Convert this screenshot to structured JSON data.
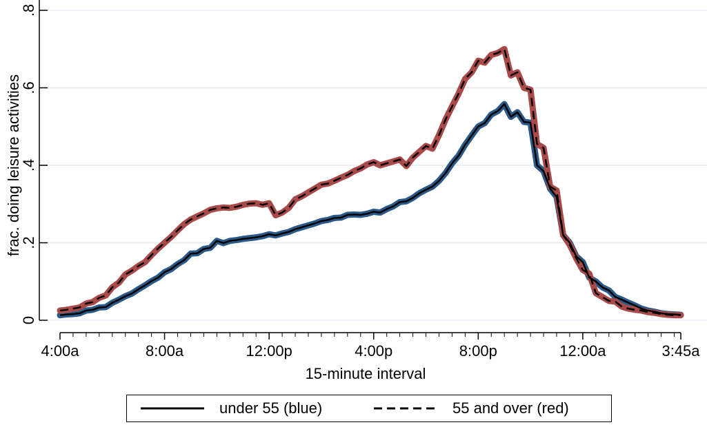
{
  "chart_data": {
    "type": "line",
    "title": "",
    "xlabel": "15-minute interval",
    "ylabel": "frac. doing leisure activities",
    "ylim": [
      0,
      0.8
    ],
    "yticks": [
      0,
      0.2,
      0.4,
      0.6,
      0.8
    ],
    "yticklabels": [
      "0",
      ".2",
      ".4",
      ".6",
      ".8"
    ],
    "xlim": [
      1,
      96
    ],
    "xticks": [
      1,
      17,
      33,
      49,
      65,
      81,
      96
    ],
    "xticklabels": [
      "4:00a",
      "8:00a",
      "12:00p",
      "4:00p",
      "8:00p",
      "12:00a",
      "3:45a"
    ],
    "grid": true,
    "legend_position": "bottom",
    "series": [
      {
        "name": "under 55 (blue)",
        "line_style": "solid",
        "band_color": "#2b5a88",
        "values": [
          0.013,
          0.015,
          0.016,
          0.018,
          0.025,
          0.027,
          0.033,
          0.034,
          0.045,
          0.053,
          0.062,
          0.069,
          0.08,
          0.09,
          0.101,
          0.11,
          0.124,
          0.132,
          0.145,
          0.155,
          0.172,
          0.173,
          0.184,
          0.187,
          0.205,
          0.199,
          0.205,
          0.207,
          0.21,
          0.212,
          0.214,
          0.217,
          0.222,
          0.219,
          0.224,
          0.228,
          0.235,
          0.24,
          0.245,
          0.25,
          0.256,
          0.259,
          0.264,
          0.265,
          0.272,
          0.273,
          0.272,
          0.275,
          0.28,
          0.278,
          0.287,
          0.294,
          0.305,
          0.307,
          0.316,
          0.328,
          0.337,
          0.345,
          0.36,
          0.38,
          0.405,
          0.425,
          0.453,
          0.477,
          0.5,
          0.509,
          0.531,
          0.54,
          0.558,
          0.525,
          0.537,
          0.512,
          0.51,
          0.4,
          0.385,
          0.34,
          0.318,
          0.22,
          0.2,
          0.165,
          0.15,
          0.11,
          0.1,
          0.085,
          0.077,
          0.06,
          0.053,
          0.045,
          0.038,
          0.03,
          0.025,
          0.022,
          0.018,
          0.016,
          0.015,
          0.014
        ]
      },
      {
        "name": "55 and over (red)",
        "line_style": "dashed",
        "band_color": "#a84a4a",
        "values": [
          0.025,
          0.027,
          0.03,
          0.033,
          0.043,
          0.047,
          0.058,
          0.064,
          0.085,
          0.097,
          0.118,
          0.128,
          0.14,
          0.15,
          0.168,
          0.185,
          0.2,
          0.215,
          0.232,
          0.248,
          0.26,
          0.268,
          0.276,
          0.285,
          0.289,
          0.291,
          0.29,
          0.293,
          0.298,
          0.301,
          0.302,
          0.298,
          0.302,
          0.271,
          0.278,
          0.29,
          0.312,
          0.32,
          0.33,
          0.34,
          0.35,
          0.353,
          0.36,
          0.368,
          0.375,
          0.385,
          0.392,
          0.402,
          0.408,
          0.4,
          0.405,
          0.41,
          0.415,
          0.398,
          0.42,
          0.435,
          0.45,
          0.443,
          0.478,
          0.518,
          0.552,
          0.585,
          0.623,
          0.64,
          0.67,
          0.665,
          0.685,
          0.69,
          0.7,
          0.632,
          0.64,
          0.6,
          0.595,
          0.455,
          0.445,
          0.345,
          0.335,
          0.22,
          0.195,
          0.16,
          0.13,
          0.12,
          0.07,
          0.06,
          0.05,
          0.048,
          0.035,
          0.03,
          0.027,
          0.025,
          0.021,
          0.019,
          0.016,
          0.014,
          0.013,
          0.013
        ]
      }
    ]
  }
}
